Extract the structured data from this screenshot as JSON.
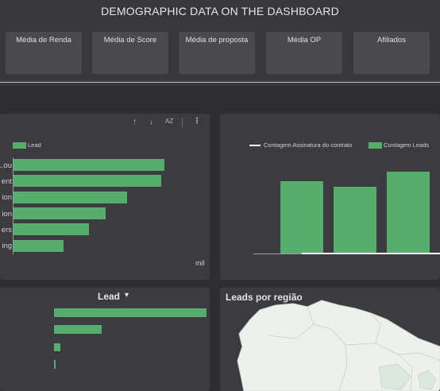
{
  "header": {
    "title": "DEMOGRAPHIC DATA ON THE DASHBOARD",
    "kpis": [
      "Média de Renda",
      "Média de Score",
      "Média de proposta",
      "Média OP",
      "Afiliados"
    ]
  },
  "colors": {
    "background": "#2e2e31",
    "panel": "#3c3c40",
    "bar": "#57ad6e",
    "line": "#ffffff"
  },
  "panel_left": {
    "toolbar": {
      "sort_asc_icon": "↑",
      "sort_desc_icon": "↓",
      "az_icon": "AZ",
      "more_icon": "⋮"
    },
    "legend": "Lead",
    "labels": [
      "ou...",
      "ent",
      "ion",
      "ion",
      "ers",
      "ing"
    ],
    "axis_end": "mil"
  },
  "panel_right": {
    "legend_line": "Contagem Assinatura do contrato",
    "legend_bar": "Contagem Leads"
  },
  "panel_bottom_left": {
    "title": "Lead",
    "dropdown_icon": "▾"
  },
  "panel_bottom_right": {
    "title": "Leads por região"
  },
  "chart_data": [
    {
      "type": "bar",
      "orientation": "horizontal",
      "categories": [
        "ou...",
        "ent",
        "ion",
        "ion",
        "ers",
        "ing"
      ],
      "series": [
        {
          "name": "Lead",
          "values": [
            100,
            98,
            75,
            61,
            50,
            33
          ]
        }
      ]
    },
    {
      "type": "bar",
      "categories": [
        "",
        "",
        ""
      ],
      "series": [
        {
          "name": "Contagem Leads",
          "values": [
            88,
            82,
            100
          ]
        },
        {
          "name": "Contagem Assinatura do contrato",
          "values": [
            0,
            0,
            0
          ]
        }
      ]
    },
    {
      "type": "bar",
      "orientation": "horizontal",
      "categories": [
        "",
        "",
        "",
        ""
      ],
      "series": [
        {
          "name": "Lead",
          "values": [
            100,
            31,
            4,
            1
          ]
        }
      ]
    }
  ]
}
